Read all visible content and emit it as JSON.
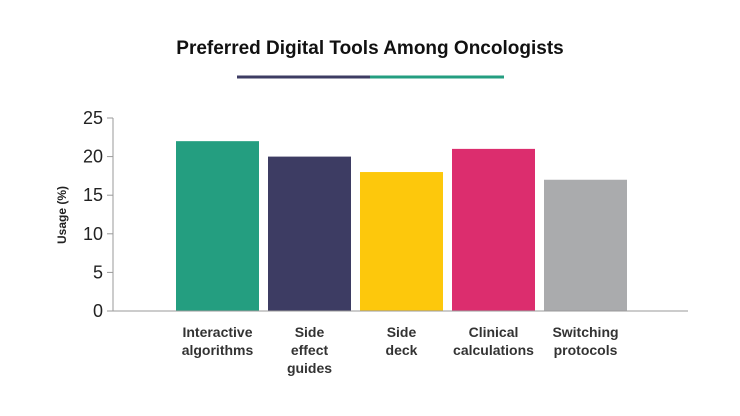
{
  "chart_data": {
    "type": "bar",
    "title": "Preferred Digital Tools Among Oncologists",
    "xlabel": "",
    "ylabel": "Usage (%)",
    "ylim": [
      0,
      25
    ],
    "yticks": [
      0,
      5,
      10,
      15,
      20,
      25
    ],
    "grid": false,
    "legend": "none",
    "categories": [
      [
        "Interactive",
        "algorithms"
      ],
      [
        "Side",
        "effect",
        "guides"
      ],
      [
        "Side",
        "deck"
      ],
      [
        "Clinical",
        "calculations"
      ],
      [
        "Switching",
        "protocols"
      ]
    ],
    "values": [
      22,
      20,
      18,
      21,
      17
    ],
    "colors": [
      "#249e80",
      "#3d3c63",
      "#fdc80c",
      "#dc2d6e",
      "#aaabad"
    ],
    "title_underline_colors": [
      "#3d3c63",
      "#249e80"
    ]
  }
}
